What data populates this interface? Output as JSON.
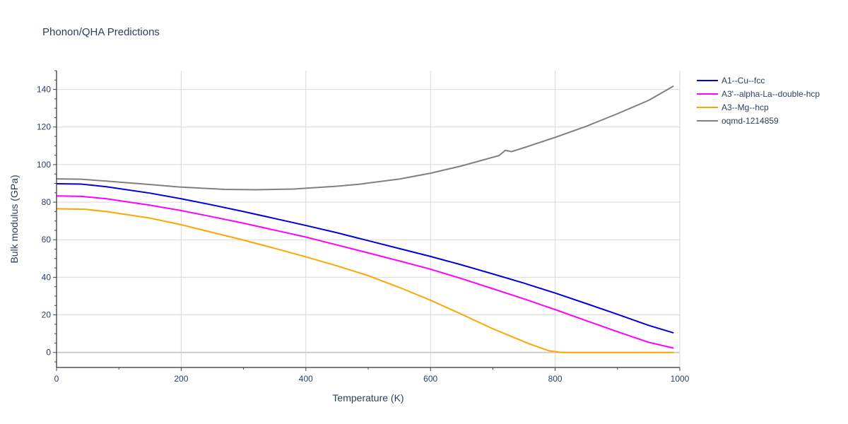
{
  "chart_data": {
    "type": "line",
    "title": "Phonon/QHA Predictions",
    "xlabel": "Temperature (K)",
    "ylabel": "Bulk modulus (GPa)",
    "xlim": [
      0,
      1000
    ],
    "ylim": [
      -8,
      150
    ],
    "x_ticks": [
      0,
      200,
      400,
      600,
      800,
      1000
    ],
    "y_ticks": [
      0,
      20,
      40,
      60,
      80,
      100,
      120,
      140
    ],
    "grid": true,
    "legend_position": "top-right",
    "series": [
      {
        "name": "A1--Cu--fcc",
        "color": "#0000dd",
        "points": [
          [
            0,
            89.8
          ],
          [
            40,
            89.6
          ],
          [
            80,
            88.2
          ],
          [
            150,
            84.8
          ],
          [
            200,
            81.8
          ],
          [
            250,
            78.5
          ],
          [
            300,
            75.0
          ],
          [
            350,
            71.3
          ],
          [
            400,
            67.6
          ],
          [
            450,
            63.7
          ],
          [
            500,
            59.5
          ],
          [
            550,
            55.3
          ],
          [
            600,
            51.1
          ],
          [
            650,
            46.6
          ],
          [
            700,
            41.8
          ],
          [
            750,
            36.9
          ],
          [
            800,
            31.6
          ],
          [
            850,
            26.0
          ],
          [
            900,
            20.3
          ],
          [
            950,
            14.4
          ],
          [
            990,
            10.4
          ]
        ]
      },
      {
        "name": "A3'--alpha-La--double-hcp",
        "color": "#ff00ff",
        "points": [
          [
            0,
            83.3
          ],
          [
            40,
            83.1
          ],
          [
            80,
            81.8
          ],
          [
            150,
            78.4
          ],
          [
            200,
            75.5
          ],
          [
            250,
            72.2
          ],
          [
            300,
            68.8
          ],
          [
            350,
            65.1
          ],
          [
            400,
            61.4
          ],
          [
            450,
            57.2
          ],
          [
            500,
            53.0
          ],
          [
            550,
            48.7
          ],
          [
            600,
            44.3
          ],
          [
            650,
            39.3
          ],
          [
            700,
            33.9
          ],
          [
            750,
            28.5
          ],
          [
            800,
            22.8
          ],
          [
            850,
            16.9
          ],
          [
            900,
            11.0
          ],
          [
            950,
            5.4
          ],
          [
            990,
            2.3
          ]
        ]
      },
      {
        "name": "A3--Mg--hcp",
        "color": "#ffa500",
        "points": [
          [
            0,
            76.5
          ],
          [
            45,
            76.2
          ],
          [
            80,
            75.0
          ],
          [
            150,
            71.5
          ],
          [
            200,
            68.0
          ],
          [
            250,
            63.9
          ],
          [
            300,
            59.8
          ],
          [
            350,
            55.4
          ],
          [
            400,
            50.9
          ],
          [
            450,
            46.1
          ],
          [
            500,
            40.9
          ],
          [
            550,
            34.6
          ],
          [
            600,
            27.8
          ],
          [
            650,
            20.3
          ],
          [
            700,
            12.6
          ],
          [
            760,
            4.4
          ],
          [
            790,
            0.9
          ],
          [
            810,
            0.0
          ],
          [
            850,
            0.0
          ],
          [
            900,
            0.0
          ],
          [
            950,
            0.0
          ],
          [
            990,
            0.0
          ]
        ]
      },
      {
        "name": "oqmd-1214859",
        "color": "#808080",
        "points": [
          [
            0,
            92.4
          ],
          [
            40,
            92.2
          ],
          [
            80,
            91.2
          ],
          [
            150,
            89.4
          ],
          [
            200,
            88.0
          ],
          [
            270,
            86.8
          ],
          [
            320,
            86.6
          ],
          [
            380,
            87.0
          ],
          [
            450,
            88.5
          ],
          [
            490,
            89.7
          ],
          [
            500,
            90.2
          ],
          [
            550,
            92.3
          ],
          [
            600,
            95.4
          ],
          [
            650,
            99.3
          ],
          [
            710,
            104.8
          ],
          [
            720,
            107.6
          ],
          [
            730,
            106.9
          ],
          [
            750,
            109.0
          ],
          [
            800,
            114.5
          ],
          [
            850,
            120.4
          ],
          [
            900,
            127.1
          ],
          [
            950,
            134.2
          ],
          [
            990,
            141.8
          ]
        ]
      }
    ]
  }
}
